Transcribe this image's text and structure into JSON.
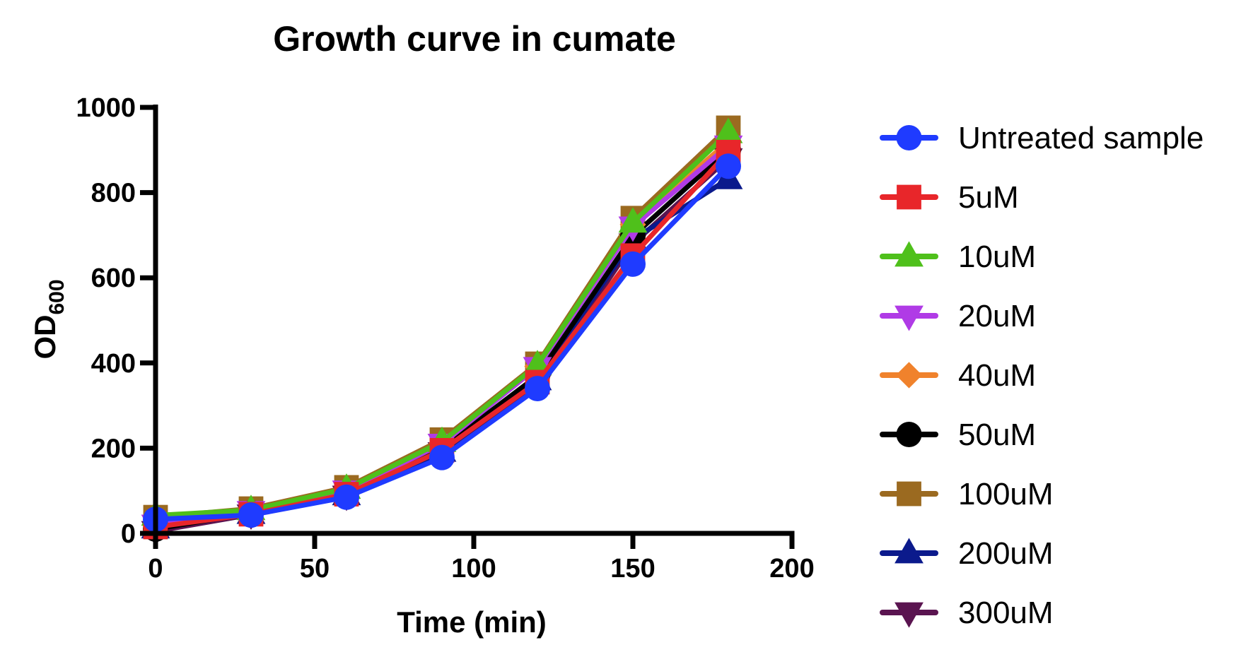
{
  "chart_data": {
    "type": "line",
    "title": "Growth curve in cumate",
    "xlabel": "Time (min)",
    "ylabel_main": "OD",
    "ylabel_sub": "600",
    "xlim": [
      0,
      200
    ],
    "ylim": [
      0,
      1000
    ],
    "xticks": [
      0,
      50,
      100,
      150,
      200
    ],
    "yticks": [
      0,
      200,
      400,
      600,
      800,
      1000
    ],
    "grid": false,
    "legend": "right",
    "x": [
      0,
      30,
      60,
      90,
      120,
      150,
      180
    ],
    "series": [
      {
        "name": "Untreated sample",
        "color": "#1f3bff",
        "marker": "circle",
        "values": [
          33,
          43,
          85,
          178,
          340,
          632,
          862
        ]
      },
      {
        "name": "5uM",
        "color": "#e8262a",
        "marker": "square",
        "values": [
          15,
          45,
          92,
          195,
          355,
          652,
          895
        ]
      },
      {
        "name": "10uM",
        "color": "#4fc01b",
        "marker": "triangle-up",
        "values": [
          42,
          55,
          105,
          215,
          395,
          730,
          940
        ]
      },
      {
        "name": "20uM",
        "color": "#b03be6",
        "marker": "triangle-down",
        "values": [
          20,
          52,
          100,
          210,
          390,
          720,
          910
        ]
      },
      {
        "name": "40uM",
        "color": "#f0822c",
        "marker": "diamond",
        "values": [
          18,
          53,
          102,
          212,
          392,
          725,
          920
        ]
      },
      {
        "name": "50uM",
        "color": "#000000",
        "marker": "circle",
        "values": [
          10,
          48,
          95,
          200,
          370,
          698,
          900
        ]
      },
      {
        "name": "100uM",
        "color": "#9b6a20",
        "marker": "square",
        "values": [
          38,
          58,
          108,
          220,
          398,
          740,
          952
        ]
      },
      {
        "name": "200uM",
        "color": "#0b1a8c",
        "marker": "triangle-up",
        "values": [
          12,
          46,
          90,
          192,
          360,
          690,
          832
        ]
      },
      {
        "name": "300uM",
        "color": "#5a1450",
        "marker": "triangle-down",
        "values": [
          5,
          44,
          88,
          190,
          350,
          680,
          880
        ]
      }
    ]
  }
}
